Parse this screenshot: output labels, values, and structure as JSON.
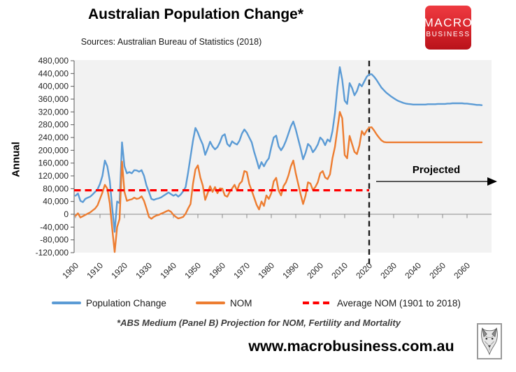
{
  "header": {
    "title": "Australian Population Change*",
    "subtitle": "Sources: Australian Bureau of Statistics (2018)",
    "logo": {
      "line1": "MACRO",
      "line2": "BUSINESS",
      "bg_color": "#D6242B"
    }
  },
  "chart_data": {
    "type": "line",
    "title": "Australian Population Change*",
    "ylabel": "Annual",
    "xlabel": "",
    "grid": false,
    "plot_bg": "#F2F2F2",
    "ylim": [
      -120000,
      480000
    ],
    "xlim": [
      1900,
      2070
    ],
    "y_tick_labels": [
      "480,000",
      "440,000",
      "400,000",
      "360,000",
      "320,000",
      "280,000",
      "240,000",
      "200,000",
      "160,000",
      "120,000",
      "80,000",
      "40,000",
      "0",
      "-40,000",
      "-80,000",
      "-120,000"
    ],
    "x_ticks": [
      1900,
      1910,
      1920,
      1930,
      1940,
      1950,
      1960,
      1970,
      1980,
      1990,
      2000,
      2010,
      2020,
      2030,
      2040,
      2050,
      2060
    ],
    "years_start": 1900,
    "years_end": 2066,
    "projection_divider_year": 2020,
    "projected_label": "Projected",
    "series": [
      {
        "name": "Population Change",
        "color": "#5B9BD5",
        "values": [
          58000,
          65000,
          42000,
          38000,
          48000,
          52000,
          55000,
          62000,
          70000,
          78000,
          95000,
          120000,
          168000,
          150000,
          105000,
          20000,
          -55000,
          40000,
          35000,
          225000,
          150000,
          128000,
          132000,
          128000,
          138000,
          137000,
          133000,
          138000,
          120000,
          90000,
          70000,
          48000,
          45000,
          48000,
          50000,
          53000,
          58000,
          63000,
          68000,
          63000,
          58000,
          62000,
          55000,
          62000,
          72000,
          85000,
          130000,
          180000,
          230000,
          270000,
          255000,
          235000,
          218000,
          186000,
          205000,
          227000,
          212000,
          203000,
          210000,
          225000,
          245000,
          250000,
          220000,
          212000,
          228000,
          222000,
          218000,
          230000,
          252000,
          265000,
          255000,
          240000,
          225000,
          195000,
          170000,
          143000,
          163000,
          150000,
          165000,
          175000,
          210000,
          240000,
          246000,
          212000,
          200000,
          212000,
          230000,
          252000,
          275000,
          290000,
          265000,
          235000,
          205000,
          172000,
          192000,
          220000,
          212000,
          194000,
          204000,
          218000,
          240000,
          232000,
          216000,
          234000,
          227000,
          260000,
          315000,
          395000,
          460000,
          420000,
          355000,
          345000,
          410000,
          395000,
          372000,
          385000,
          408000,
          400000,
          415000,
          430000,
          437000,
          438000,
          430000,
          420000,
          408000,
          396000,
          388000,
          380000,
          374000,
          368000,
          363000,
          358000,
          354000,
          351000,
          348000,
          346000,
          345000,
          344000,
          343000,
          343000,
          343000,
          343000,
          343000,
          343000,
          344000,
          344000,
          344000,
          344000,
          345000,
          345000,
          345000,
          345000,
          346000,
          346000,
          347000,
          347000,
          347000,
          347000,
          347000,
          346000,
          346000,
          345000,
          344000,
          343000,
          342000,
          342000,
          341000
        ]
      },
      {
        "name": "NOM",
        "color": "#ED7D31",
        "values": [
          -5000,
          3000,
          -10000,
          -6000,
          -2000,
          2000,
          6000,
          12000,
          18000,
          28000,
          48000,
          68000,
          92000,
          80000,
          35000,
          -45000,
          -118000,
          -40000,
          -15000,
          165000,
          70000,
          42000,
          45000,
          47000,
          52000,
          48000,
          50000,
          56000,
          42000,
          18000,
          -8000,
          -14000,
          -8000,
          -4000,
          -2000,
          2000,
          5000,
          9000,
          12000,
          8000,
          -2000,
          -8000,
          -13000,
          -11000,
          -8000,
          2000,
          18000,
          32000,
          95000,
          140000,
          153000,
          115000,
          90000,
          45000,
          66000,
          88000,
          70000,
          85000,
          66000,
          81000,
          80000,
          59000,
          55000,
          70000,
          81000,
          92000,
          74000,
          95000,
          103000,
          135000,
          132000,
          95000,
          74000,
          52000,
          30000,
          15000,
          40000,
          26000,
          59000,
          48000,
          66000,
          103000,
          114000,
          74000,
          59000,
          88000,
          100000,
          121000,
          150000,
          168000,
          128000,
          95000,
          62000,
          32000,
          58000,
          100000,
          96000,
          76000,
          85000,
          100000,
          128000,
          135000,
          115000,
          110000,
          125000,
          175000,
          210000,
          265000,
          320000,
          300000,
          185000,
          175000,
          245000,
          220000,
          195000,
          188000,
          215000,
          260000,
          248000,
          262000,
          271000,
          272000,
          262000,
          250000,
          240000,
          231000,
          226000,
          225000,
          225000,
          225000,
          225000,
          225000,
          225000,
          225000,
          225000,
          225000,
          225000,
          225000,
          225000,
          225000,
          225000,
          225000,
          225000,
          225000,
          225000,
          225000,
          225000,
          225000,
          225000,
          225000,
          225000,
          225000,
          225000,
          225000,
          225000,
          225000,
          225000,
          225000,
          225000,
          225000,
          225000,
          225000,
          225000,
          225000,
          225000,
          225000,
          225000
        ]
      }
    ],
    "average_line": {
      "label": "Average NOM (1901 to 2018)",
      "value": 75000,
      "color": "#FF0000",
      "x_range": [
        1900,
        2020
      ]
    }
  },
  "legend": {
    "items": [
      {
        "label": "Population Change",
        "color": "#5B9BD5",
        "style": "solid"
      },
      {
        "label": "NOM",
        "color": "#ED7D31",
        "style": "solid"
      },
      {
        "label": "Average NOM (1901 to 2018)",
        "color": "#FF0000",
        "style": "dashed"
      }
    ]
  },
  "footnote": "*ABS Medium (Panel B) Projection for NOM, Fertility and Mortality",
  "footer": {
    "website": "www.macrobusiness.com.au",
    "wolf_logo": "wolf-head-logo"
  }
}
